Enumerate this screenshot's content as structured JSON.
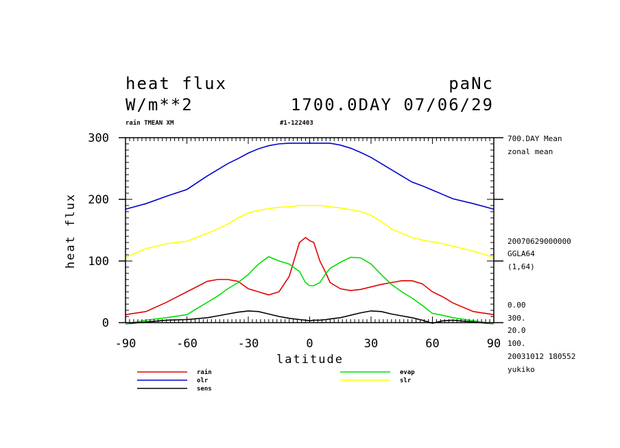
{
  "header": {
    "title": "heat flux",
    "units": "W/m**2",
    "model": "paNc",
    "time": "1700.0DAY 07/06/29",
    "subtitle_left": "rain TMEAN XM",
    "subtitle_mid": "#1-122403"
  },
  "side_info": {
    "lines_top": [
      "700.DAY Mean",
      "zonal mean"
    ],
    "lines_mid": [
      "20070629000000",
      "GGLA64",
      "(1,64)"
    ],
    "lines_bottom": [
      "0.00",
      "300.",
      "20.0",
      "100.",
      "20031012 180552",
      "yukiko"
    ]
  },
  "chart_data": {
    "type": "line",
    "title": "heat flux",
    "xlabel": "latitude",
    "ylabel": "heat flux",
    "xlim": [
      -90,
      90
    ],
    "ylim": [
      0,
      300
    ],
    "xticks": [
      -90,
      -60,
      -30,
      0,
      30,
      60,
      90
    ],
    "xtick_labels": [
      "-90",
      "-60",
      "-30",
      "0",
      "30",
      "60",
      "90"
    ],
    "yticks": [
      0,
      100,
      200,
      300
    ],
    "ytick_labels": [
      "0",
      "100",
      "200",
      "300"
    ],
    "x": [
      -90,
      -80,
      -70,
      -60,
      -50,
      -45,
      -40,
      -35,
      -30,
      -25,
      -20,
      -15,
      -10,
      -5,
      -2,
      0,
      2,
      5,
      8,
      10,
      15,
      20,
      25,
      30,
      35,
      40,
      45,
      50,
      55,
      60,
      65,
      70,
      80,
      90
    ],
    "series": [
      {
        "name": "rain",
        "color": "#e00000",
        "values": [
          13,
          18,
          33,
          50,
          67,
          70,
          70,
          67,
          55,
          50,
          45,
          50,
          75,
          130,
          138,
          133,
          130,
          100,
          80,
          65,
          55,
          52,
          54,
          58,
          62,
          65,
          68,
          68,
          63,
          50,
          42,
          32,
          18,
          13
        ]
      },
      {
        "name": "olr",
        "color": "#0000cc",
        "values": [
          184,
          193,
          205,
          216,
          238,
          248,
          258,
          266,
          275,
          282,
          287,
          290,
          291,
          291,
          291,
          291,
          291,
          291,
          291,
          291,
          288,
          283,
          276,
          268,
          258,
          248,
          238,
          228,
          222,
          215,
          208,
          201,
          193,
          184
        ]
      },
      {
        "name": "sens",
        "color": "#000000",
        "values": [
          -2,
          1,
          4,
          5,
          8,
          11,
          14,
          17,
          19,
          18,
          14,
          10,
          7,
          5,
          4,
          3,
          4,
          4,
          5,
          6,
          8,
          12,
          16,
          19,
          18,
          14,
          11,
          8,
          4,
          -1,
          3,
          4,
          1,
          -2
        ]
      },
      {
        "name": "evap",
        "color": "#00dd00",
        "values": [
          -2,
          4,
          8,
          13,
          33,
          43,
          55,
          65,
          78,
          95,
          107,
          100,
          95,
          83,
          65,
          60,
          60,
          65,
          80,
          88,
          98,
          106,
          105,
          95,
          78,
          62,
          50,
          40,
          28,
          15,
          12,
          8,
          3,
          -2
        ]
      },
      {
        "name": "slr",
        "color": "#ffff00",
        "values": [
          106,
          120,
          128,
          132,
          145,
          152,
          160,
          170,
          178,
          182,
          185,
          187,
          188,
          190,
          190,
          190,
          190,
          190,
          189,
          188,
          186,
          183,
          180,
          174,
          164,
          152,
          145,
          138,
          134,
          131,
          128,
          124,
          116,
          106
        ]
      }
    ]
  }
}
